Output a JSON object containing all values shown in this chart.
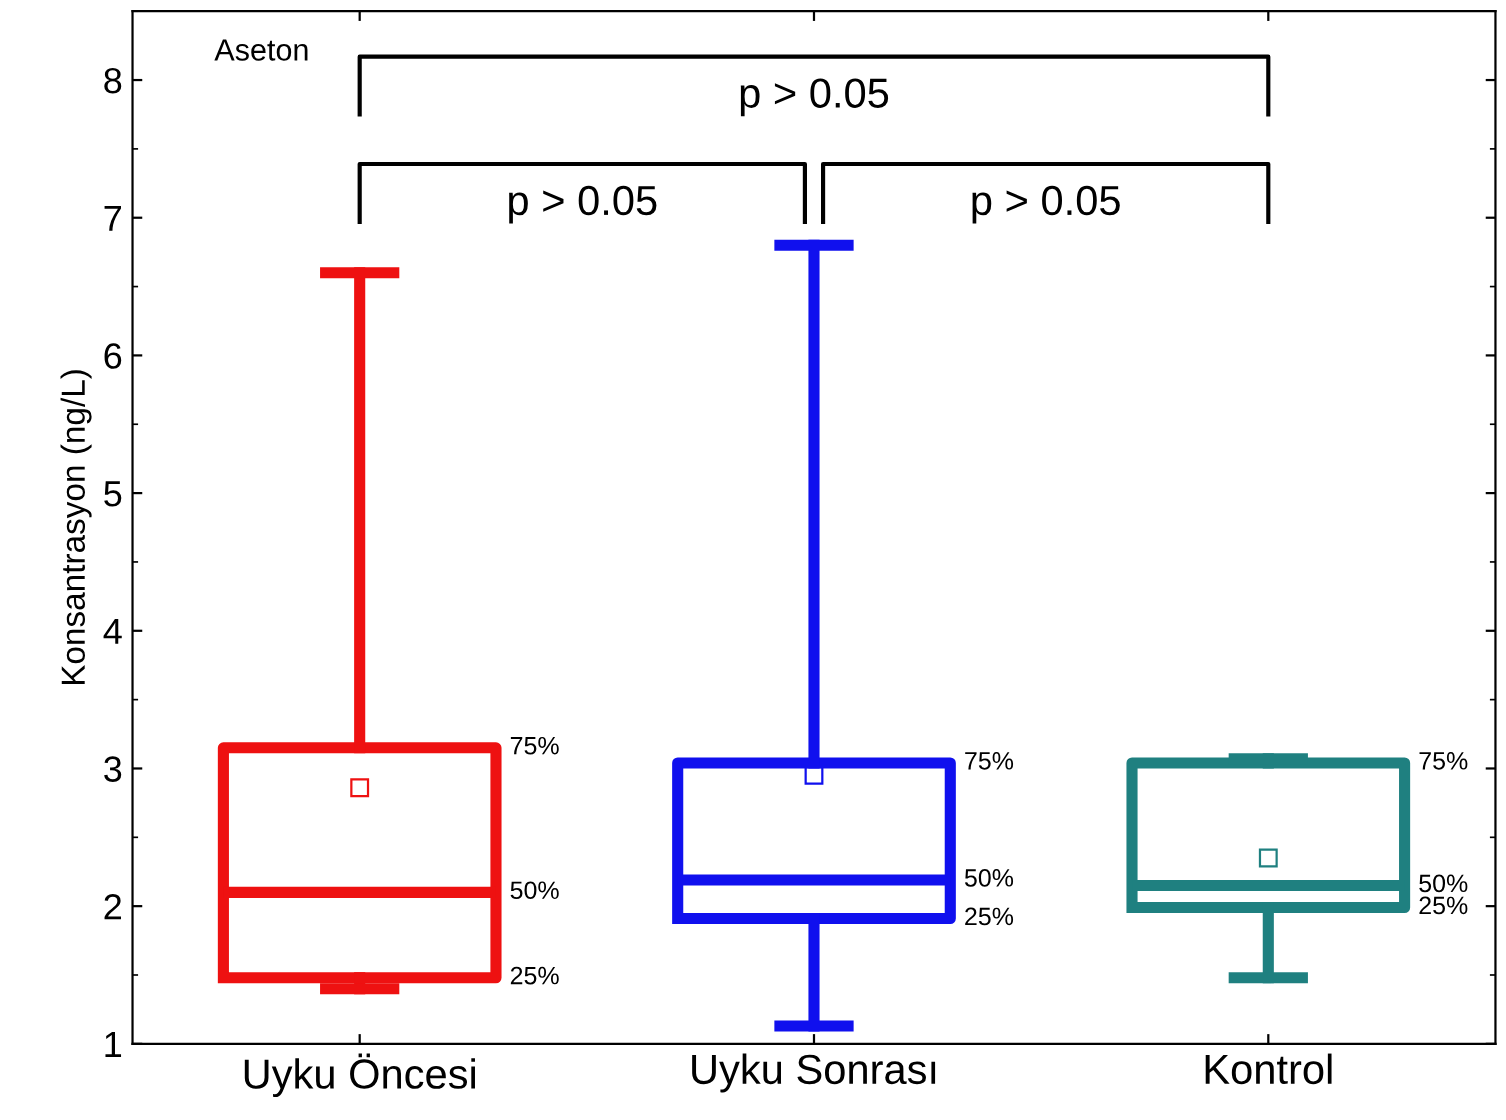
{
  "chart_data": {
    "type": "box",
    "ylabel": "Konsantrasyon (ng/L)",
    "categories": [
      "Uyku Öncesi",
      "Uyku Sonrası",
      "Kontrol"
    ],
    "colors": [
      "#ee1111",
      "#1010ee",
      "#1f8080"
    ],
    "boxes": [
      {
        "low": 1.4,
        "q1": 1.48,
        "median": 2.1,
        "q3": 3.15,
        "high": 6.6,
        "mean": 2.86
      },
      {
        "low": 1.13,
        "q1": 1.91,
        "median": 2.19,
        "q3": 3.04,
        "high": 6.8,
        "mean": 2.95
      },
      {
        "low": 1.48,
        "q1": 1.99,
        "median": 2.15,
        "q3": 3.04,
        "high": 3.07,
        "mean": 2.35
      }
    ],
    "ylim": [
      1,
      8.5
    ],
    "yticks": [
      1,
      2,
      3,
      4,
      5,
      6,
      7,
      8
    ],
    "grid": false,
    "annotations": [
      "Aseton",
      "p > 0.05",
      "p > 0.05",
      "p > 0.05",
      "75%",
      "50%",
      "25%",
      "75%",
      "50%",
      "25%",
      "75%",
      "50%",
      "25%"
    ]
  }
}
